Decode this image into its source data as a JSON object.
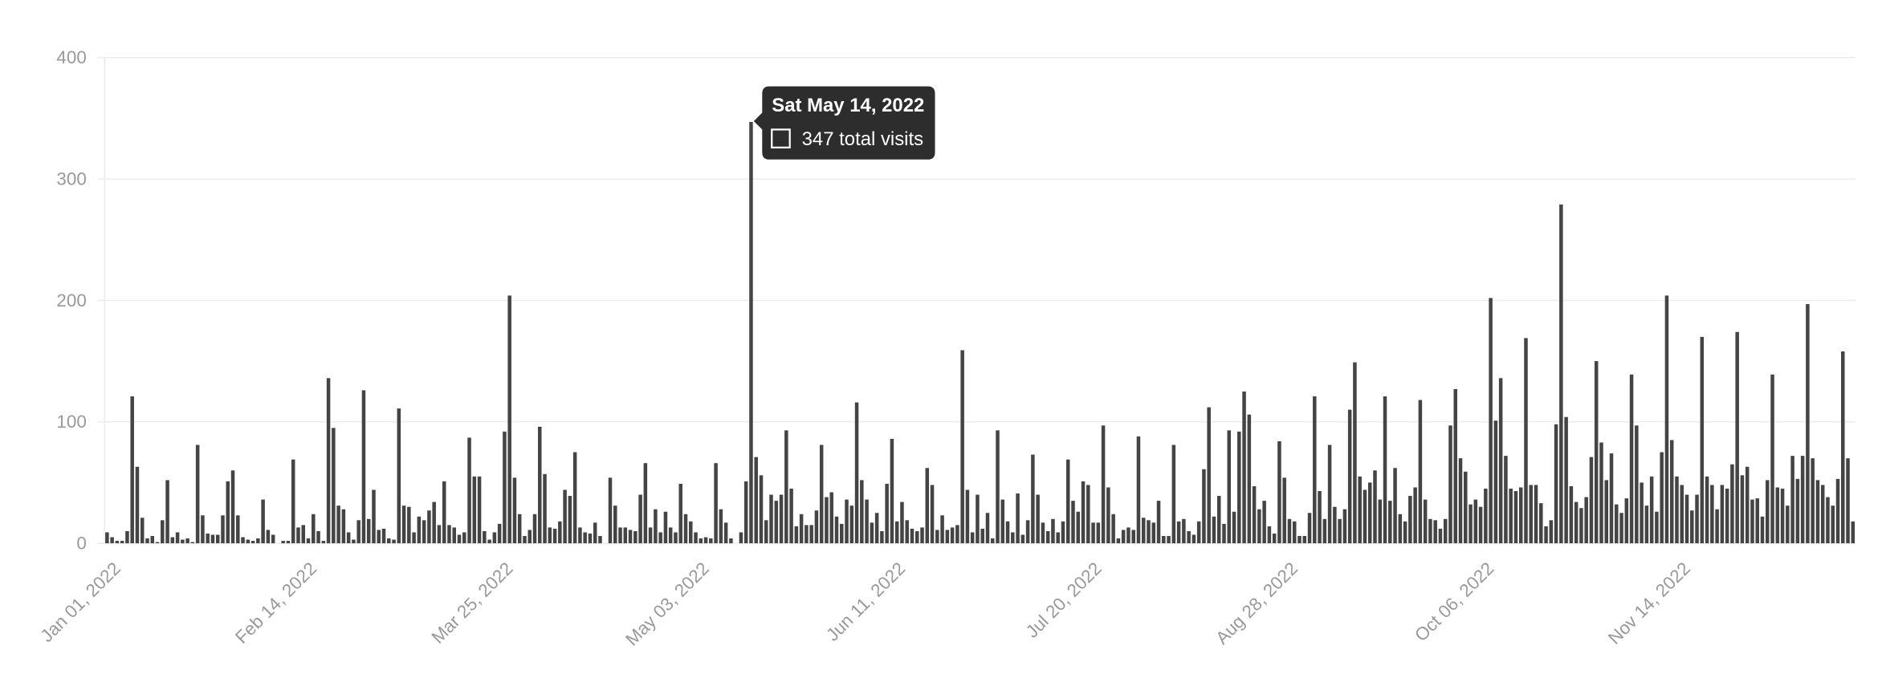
{
  "chart_data": {
    "type": "bar",
    "color": "#444444",
    "grid": true,
    "ylim": [
      0,
      400
    ],
    "yticks": [
      0,
      100,
      200,
      300,
      400
    ],
    "categories": [
      "Jan 01, 2022",
      null,
      null,
      null,
      null,
      null,
      null,
      null,
      null,
      null,
      null,
      null,
      null,
      null,
      null,
      null,
      null,
      null,
      null,
      null,
      null,
      null,
      null,
      null,
      null,
      null,
      null,
      null,
      null,
      null,
      null,
      null,
      null,
      null,
      null,
      null,
      null,
      null,
      null,
      "Feb 14, 2022",
      null,
      null,
      null,
      null,
      null,
      null,
      null,
      null,
      null,
      null,
      null,
      null,
      null,
      null,
      null,
      null,
      null,
      null,
      null,
      null,
      null,
      null,
      null,
      null,
      null,
      null,
      null,
      null,
      null,
      null,
      null,
      null,
      null,
      null,
      null,
      null,
      null,
      null,
      "Mar 25, 2022",
      null,
      null,
      null,
      null,
      null,
      null,
      null,
      null,
      null,
      null,
      null,
      null,
      null,
      null,
      null,
      null,
      null,
      null,
      null,
      null,
      null,
      null,
      null,
      null,
      null,
      null,
      null,
      null,
      null,
      null,
      null,
      null,
      null,
      null,
      null,
      null,
      null,
      null,
      "May 03, 2022",
      null,
      null,
      null,
      null,
      null,
      null,
      null,
      null,
      null,
      null,
      null,
      null,
      null,
      null,
      null,
      null,
      null,
      null,
      null,
      null,
      null,
      null,
      null,
      null,
      null,
      null,
      null,
      null,
      null,
      null,
      null,
      null,
      null,
      null,
      null,
      null,
      null,
      null,
      "Jun 11, 2022",
      null,
      null,
      null,
      null,
      null,
      null,
      null,
      null,
      null,
      null,
      null,
      null,
      null,
      null,
      null,
      null,
      null,
      null,
      null,
      null,
      null,
      null,
      null,
      null,
      null,
      null,
      null,
      null,
      null,
      null,
      null,
      null,
      null,
      null,
      null,
      null,
      null,
      null,
      "Jul 20, 2022",
      null,
      null,
      null,
      null,
      null,
      null,
      null,
      null,
      null,
      null,
      null,
      null,
      null,
      null,
      null,
      null,
      null,
      null,
      null,
      null,
      null,
      null,
      null,
      null,
      null,
      null,
      null,
      null,
      null,
      null,
      null,
      null,
      null,
      null,
      null,
      null,
      null,
      null,
      "Aug 28, 2022",
      null,
      null,
      null,
      null,
      null,
      null,
      null,
      null,
      null,
      null,
      null,
      null,
      null,
      null,
      null,
      null,
      null,
      null,
      null,
      null,
      null,
      null,
      null,
      null,
      null,
      null,
      null,
      null,
      null,
      null,
      null,
      null,
      null,
      null,
      null,
      null,
      null,
      null,
      "Oct 06, 2022",
      null,
      null,
      null,
      null,
      null,
      null,
      null,
      null,
      null,
      null,
      null,
      null,
      null,
      null,
      null,
      null,
      null,
      null,
      null,
      null,
      null,
      null,
      null,
      null,
      null,
      null,
      null,
      null,
      null,
      null,
      null,
      null,
      null,
      null,
      null,
      null,
      null,
      null,
      "Nov 14, 2022",
      null,
      null,
      null,
      null,
      null,
      null,
      null,
      null,
      null,
      null,
      null,
      null,
      null,
      null,
      null,
      null,
      null,
      null,
      null,
      null,
      null,
      null,
      null,
      null,
      null,
      null,
      null,
      null,
      null,
      null,
      null,
      null,
      null,
      null,
      null
    ],
    "values": [
      9,
      5,
      2,
      2,
      10,
      121,
      63,
      21,
      4,
      6,
      1,
      19,
      52,
      5,
      9,
      3,
      4,
      1,
      81,
      23,
      8,
      7,
      7,
      23,
      51,
      60,
      23,
      5,
      3,
      2,
      4,
      36,
      11,
      7,
      0,
      2,
      2,
      69,
      13,
      15,
      4,
      24,
      10,
      2,
      136,
      95,
      31,
      28,
      9,
      3,
      19,
      126,
      20,
      44,
      11,
      12,
      4,
      3,
      111,
      31,
      30,
      9,
      22,
      19,
      27,
      34,
      15,
      51,
      15,
      13,
      7,
      9,
      87,
      55,
      55,
      10,
      3,
      9,
      16,
      92,
      204,
      54,
      24,
      6,
      11,
      24,
      96,
      57,
      13,
      12,
      18,
      44,
      39,
      75,
      13,
      9,
      8,
      17,
      6,
      0,
      54,
      31,
      13,
      13,
      11,
      10,
      40,
      66,
      13,
      28,
      9,
      26,
      13,
      9,
      49,
      24,
      18,
      9,
      4,
      5,
      4,
      66,
      28,
      17,
      4,
      0,
      9,
      51,
      347,
      71,
      56,
      19,
      40,
      35,
      40,
      93,
      45,
      14,
      24,
      15,
      15,
      27,
      81,
      38,
      42,
      22,
      16,
      36,
      31,
      116,
      52,
      36,
      17,
      25,
      10,
      49,
      86,
      18,
      34,
      19,
      12,
      10,
      13,
      62,
      48,
      11,
      23,
      11,
      13,
      15,
      159,
      44,
      9,
      40,
      12,
      25,
      4,
      93,
      36,
      18,
      9,
      41,
      7,
      19,
      73,
      40,
      17,
      10,
      20,
      9,
      18,
      69,
      35,
      26,
      51,
      48,
      17,
      17,
      97,
      46,
      24,
      4,
      11,
      13,
      11,
      88,
      21,
      19,
      17,
      35,
      6,
      6,
      81,
      18,
      20,
      10,
      7,
      18,
      61,
      112,
      22,
      39,
      16,
      93,
      26,
      92,
      125,
      106,
      47,
      28,
      35,
      14,
      8,
      84,
      54,
      20,
      18,
      6,
      6,
      25,
      121,
      43,
      20,
      81,
      30,
      20,
      28,
      110,
      149,
      55,
      44,
      50,
      60,
      36,
      121,
      35,
      62,
      24,
      18,
      39,
      46,
      118,
      36,
      20,
      19,
      12,
      20,
      97,
      127,
      70,
      59,
      32,
      36,
      30,
      45,
      202,
      101,
      136,
      72,
      45,
      43,
      46,
      169,
      48,
      48,
      33,
      14,
      19,
      98,
      279,
      104,
      47,
      34,
      29,
      38,
      71,
      150,
      83,
      52,
      74,
      32,
      25,
      37,
      139,
      97,
      50,
      31,
      55,
      26,
      75,
      204,
      85,
      55,
      48,
      40,
      27,
      40,
      170,
      55,
      48,
      28,
      48,
      45,
      65,
      174,
      56,
      63,
      36,
      37,
      22,
      52,
      139,
      46,
      45,
      31,
      72,
      53,
      72,
      197,
      70,
      52,
      48,
      38,
      31,
      53,
      158,
      70,
      18
    ]
  },
  "tooltip": {
    "title": "Sat May 14, 2022",
    "text": "347 total visits"
  }
}
